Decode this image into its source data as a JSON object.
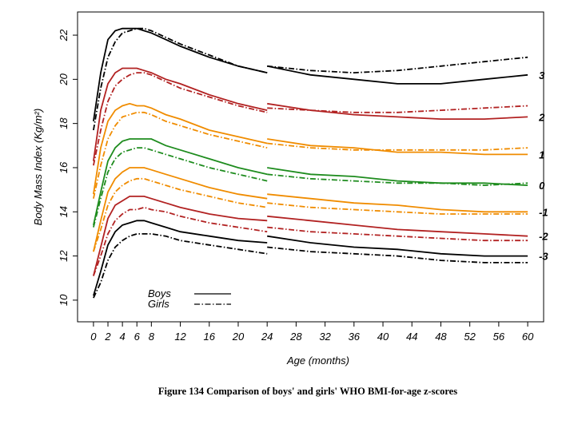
{
  "chart_data": {
    "type": "line",
    "caption": "Figure 134  Comparison of boys' and girls' WHO BMI-for-age z-scores",
    "x_label": "Age (months)",
    "y_label": "Body Mass Index (Kg/m²)",
    "xlim": [
      -2.2,
      62.2
    ],
    "ylim": [
      9.02,
      23.05
    ],
    "xticks": [
      0,
      2,
      4,
      6,
      8,
      12,
      16,
      20,
      24,
      28,
      32,
      36,
      40,
      44,
      48,
      52,
      56,
      60
    ],
    "yticks": [
      10,
      12,
      14,
      16,
      18,
      20,
      22
    ],
    "legend_position": "bottom-left",
    "x": [
      0,
      1,
      2,
      3,
      4,
      5,
      6,
      7,
      8,
      10,
      12,
      16,
      20,
      24,
      24,
      24,
      30,
      36,
      42,
      48,
      54,
      60
    ],
    "groups": [
      {
        "name": "Boys",
        "dash": "solid",
        "series": [
          {
            "name": "3",
            "color": "#000000",
            "values": [
              18.1,
              20.3,
              21.8,
              22.2,
              22.3,
              22.3,
              22.3,
              22.2,
              22.1,
              21.8,
              21.5,
              21.0,
              20.6,
              20.3,
              null,
              20.6,
              20.2,
              20.0,
              19.8,
              19.8,
              20.0,
              20.2
            ]
          },
          {
            "name": "2",
            "color": "#b22222",
            "values": [
              16.3,
              18.6,
              19.8,
              20.3,
              20.5,
              20.5,
              20.5,
              20.4,
              20.3,
              20.0,
              19.8,
              19.3,
              18.9,
              18.6,
              null,
              18.9,
              18.6,
              18.4,
              18.3,
              18.2,
              18.2,
              18.3
            ]
          },
          {
            "name": "1",
            "color": "#f08c00",
            "values": [
              14.8,
              16.9,
              18.1,
              18.6,
              18.8,
              18.9,
              18.8,
              18.8,
              18.7,
              18.4,
              18.2,
              17.7,
              17.4,
              17.1,
              null,
              17.3,
              17.0,
              16.9,
              16.7,
              16.7,
              16.6,
              16.6
            ]
          },
          {
            "name": "0",
            "color": "#1e8c1e",
            "values": [
              13.4,
              14.9,
              16.3,
              16.9,
              17.2,
              17.3,
              17.3,
              17.3,
              17.3,
              17.0,
              16.8,
              16.4,
              16.0,
              15.7,
              null,
              16.0,
              15.7,
              15.6,
              15.4,
              15.3,
              15.3,
              15.2
            ]
          },
          {
            "name": "-1",
            "color": "#f08c00",
            "values": [
              12.2,
              13.6,
              14.9,
              15.5,
              15.8,
              16.0,
              16.0,
              16.0,
              15.9,
              15.7,
              15.5,
              15.1,
              14.8,
              14.6,
              null,
              14.8,
              14.6,
              14.4,
              14.3,
              14.1,
              14.0,
              14.0
            ]
          },
          {
            "name": "-2",
            "color": "#b22222",
            "values": [
              11.1,
              12.4,
              13.7,
              14.3,
              14.5,
              14.7,
              14.7,
              14.7,
              14.6,
              14.4,
              14.2,
              13.9,
              13.7,
              13.6,
              null,
              13.8,
              13.6,
              13.4,
              13.2,
              13.1,
              13.0,
              12.9
            ]
          },
          {
            "name": "-3",
            "color": "#000000",
            "values": [
              10.2,
              11.3,
              12.5,
              13.1,
              13.4,
              13.5,
              13.6,
              13.6,
              13.5,
              13.3,
              13.1,
              12.9,
              12.7,
              12.6,
              null,
              12.9,
              12.6,
              12.4,
              12.3,
              12.1,
              12.0,
              12.0
            ]
          }
        ]
      },
      {
        "name": "Girls",
        "dash": "dashdot",
        "series": [
          {
            "color": "#000000",
            "values": [
              17.7,
              19.6,
              21.0,
              21.7,
              22.1,
              22.2,
              22.3,
              22.3,
              22.2,
              21.9,
              21.6,
              21.1,
              20.6,
              20.3,
              null,
              20.6,
              20.4,
              20.3,
              20.4,
              20.6,
              20.8,
              21.0
            ]
          },
          {
            "color": "#b22222",
            "values": [
              16.1,
              17.7,
              19.0,
              19.7,
              20.0,
              20.2,
              20.3,
              20.3,
              20.2,
              19.9,
              19.6,
              19.2,
              18.8,
              18.5,
              null,
              18.7,
              18.6,
              18.5,
              18.5,
              18.6,
              18.7,
              18.8
            ]
          },
          {
            "color": "#f08c00",
            "values": [
              14.6,
              16.1,
              17.3,
              17.9,
              18.3,
              18.4,
              18.5,
              18.5,
              18.4,
              18.1,
              17.9,
              17.5,
              17.2,
              16.9,
              null,
              17.1,
              16.9,
              16.8,
              16.8,
              16.8,
              16.8,
              16.9
            ]
          },
          {
            "color": "#1e8c1e",
            "values": [
              13.3,
              14.6,
              15.8,
              16.4,
              16.7,
              16.8,
              16.9,
              16.9,
              16.8,
              16.6,
              16.4,
              16.0,
              15.7,
              15.4,
              null,
              15.7,
              15.5,
              15.4,
              15.3,
              15.3,
              15.2,
              15.3
            ]
          },
          {
            "color": "#f08c00",
            "values": [
              12.2,
              13.2,
              14.3,
              14.9,
              15.2,
              15.4,
              15.5,
              15.5,
              15.4,
              15.2,
              15.0,
              14.7,
              14.4,
              14.2,
              null,
              14.4,
              14.2,
              14.1,
              14.0,
              13.9,
              13.9,
              13.9
            ]
          },
          {
            "color": "#b22222",
            "values": [
              11.1,
              12.0,
              13.0,
              13.6,
              13.9,
              14.1,
              14.1,
              14.2,
              14.1,
              14.0,
              13.8,
              13.5,
              13.3,
              13.1,
              null,
              13.3,
              13.1,
              13.0,
              12.9,
              12.8,
              12.7,
              12.7
            ]
          },
          {
            "color": "#000000",
            "values": [
              10.1,
              10.8,
              11.8,
              12.4,
              12.7,
              12.9,
              13.0,
              13.0,
              13.0,
              12.9,
              12.7,
              12.5,
              12.3,
              12.1,
              null,
              12.4,
              12.2,
              12.1,
              12.0,
              11.8,
              11.7,
              11.7
            ]
          }
        ]
      }
    ]
  }
}
